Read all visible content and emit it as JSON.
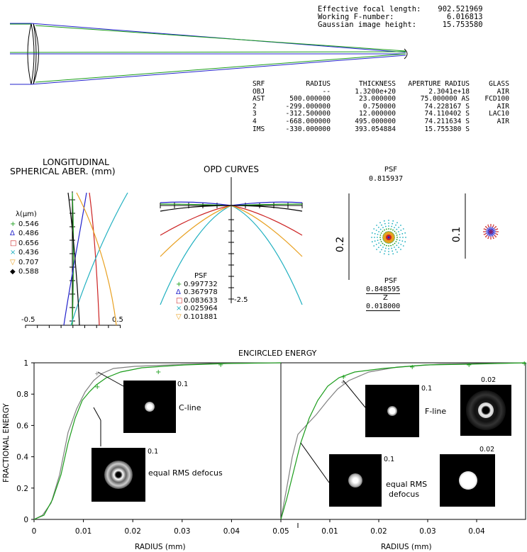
{
  "header": {
    "rows": [
      {
        "label": "Effective focal length:",
        "value": "902.521969"
      },
      {
        "label": "Working F-number:",
        "value": "6.016813"
      },
      {
        "label": "Gaussian image height:",
        "value": "15.753580"
      }
    ]
  },
  "surface_table": {
    "columns": [
      "SRF",
      "RADIUS",
      "THICKNESS",
      "APERTURE RADIUS",
      "GLASS"
    ],
    "rows": [
      [
        "OBJ",
        "--",
        "1.3200e+20",
        "2.3041e+18",
        "AIR"
      ],
      [
        "AST",
        "500.000000",
        "23.000000",
        "75.000000 AS",
        "FCD100"
      ],
      [
        "2",
        "-299.000000",
        "0.750000",
        "74.228167 S",
        "AIR"
      ],
      [
        "3",
        "-312.500000",
        "12.000000",
        "74.110402 S",
        "LAC10"
      ],
      [
        "4",
        "-668.000000",
        "495.000000",
        "74.211634 S",
        "AIR"
      ],
      [
        "IMS",
        "-330.000000",
        "393.054884",
        "15.755380 S",
        ""
      ]
    ]
  },
  "spherical": {
    "title_line1": "LONGITUDINAL",
    "title_line2": "SPHERICAL ABER. (mm)",
    "legend_title": "λ(μm)",
    "wavelengths": [
      {
        "symbol": "+",
        "label": "0.546",
        "color": "#1a9c1a"
      },
      {
        "symbol": "Δ",
        "label": "0.486",
        "color": "#2222cc"
      },
      {
        "symbol": "□",
        "label": "0.656",
        "color": "#cc2222"
      },
      {
        "symbol": "×",
        "label": "0.436",
        "color": "#20b0c0"
      },
      {
        "symbol": "▽",
        "label": "0.707",
        "color": "#e8a020"
      },
      {
        "symbol": "◆",
        "label": "0.588",
        "color": "#000000"
      }
    ],
    "tick_left": "-0.5",
    "tick_right": "0.5"
  },
  "opd": {
    "title": "OPD CURVES",
    "psf_label": "PSF",
    "scale_label": "-2.5",
    "psf_values": [
      "0.997732",
      "0.367978",
      "0.083633",
      "0.025964",
      "0.101881"
    ]
  },
  "psf_top": {
    "label": "PSF",
    "value": "0.815937",
    "scale_left": "0.2",
    "scale_right": "0.1"
  },
  "psf_bottom": {
    "label": "PSF",
    "value": "0.848595",
    "z_label": "Z",
    "z_value": "0.018000"
  },
  "encircled": {
    "title": "ENCIRCLED ENERGY",
    "ylabel": "FRACTIONAL ENERGY",
    "xlabel": "RADIUS (mm)",
    "y_ticks": [
      "0",
      "0.2",
      "0.4",
      "0.6",
      "0.8",
      "1"
    ],
    "left_x_ticks": [
      "0",
      "0.01",
      "0.02",
      "0.03",
      "0.04",
      "0.05"
    ],
    "right_x_ticks": [
      "0.01",
      "0.02",
      "0.03",
      "0.04"
    ],
    "left_panel": {
      "c_scale": "0.1",
      "c_label": "C-line",
      "d_scale": "0.1",
      "d_label": "equal RMS defocus"
    },
    "right_panel": {
      "f_scale": "0.1",
      "f_label": "F-line",
      "f_scale2": "0.02",
      "d_scale": "0.1",
      "d_label_1": "equal RMS",
      "d_label_2": "defocus",
      "d_scale2": "0.02"
    }
  },
  "colors": {
    "green": "#1a9c1a",
    "blue": "#2222cc",
    "gray": "#808080"
  }
}
